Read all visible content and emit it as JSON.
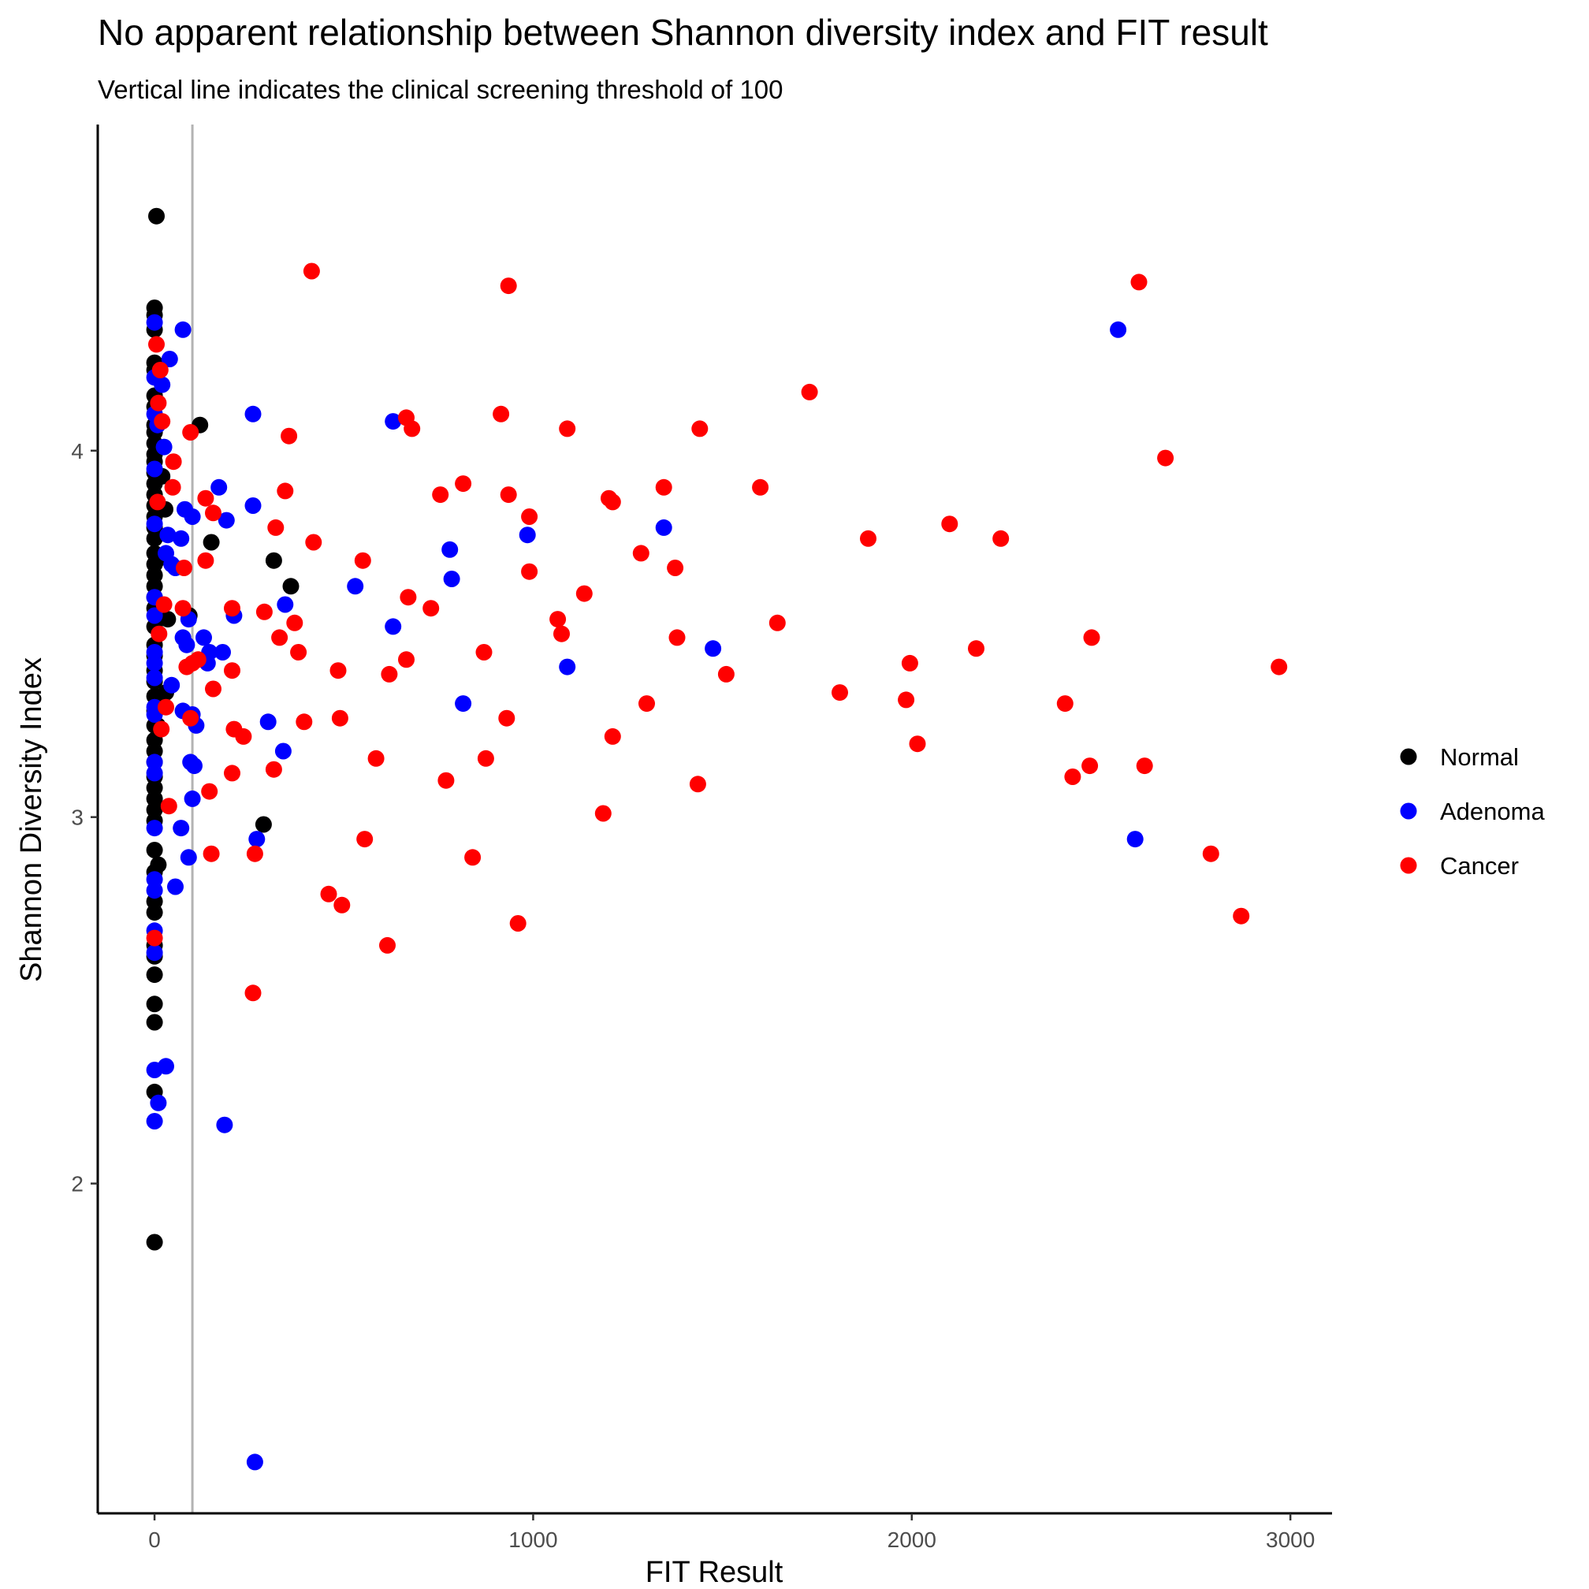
{
  "chart_data": {
    "type": "scatter",
    "title": "No apparent relationship between Shannon diversity index and FIT result",
    "subtitle": "Vertical line indicates the clinical screening threshold of 100",
    "xlabel": "FIT Result",
    "ylabel": "Shannon Diversity Index",
    "xlim": [
      -150,
      3110
    ],
    "ylim": [
      1.1,
      4.89
    ],
    "x_ticks": [
      0,
      1000,
      2000,
      3000
    ],
    "y_ticks": [
      2,
      3,
      4
    ],
    "reference_line": {
      "x": 100,
      "color": "#b3b3b3"
    },
    "grid": false,
    "legend_position": "right",
    "series": [
      {
        "name": "Normal",
        "color": "#000000",
        "points": [
          [
            5,
            4.64
          ],
          [
            0,
            4.39
          ],
          [
            0,
            4.37
          ],
          [
            0,
            4.33
          ],
          [
            0,
            4.24
          ],
          [
            0,
            4.22
          ],
          [
            0,
            4.15
          ],
          [
            0,
            4.12
          ],
          [
            0,
            4.07
          ],
          [
            0,
            4.05
          ],
          [
            0,
            4.02
          ],
          [
            0,
            3.99
          ],
          [
            0,
            3.97
          ],
          [
            0,
            3.94
          ],
          [
            0,
            3.91
          ],
          [
            0,
            3.88
          ],
          [
            0,
            3.85
          ],
          [
            0,
            3.82
          ],
          [
            0,
            3.79
          ],
          [
            0,
            3.76
          ],
          [
            0,
            3.72
          ],
          [
            0,
            3.69
          ],
          [
            0,
            3.66
          ],
          [
            0,
            3.63
          ],
          [
            0,
            3.6
          ],
          [
            0,
            3.57
          ],
          [
            0,
            3.52
          ],
          [
            0,
            3.47
          ],
          [
            0,
            3.44
          ],
          [
            0,
            3.4
          ],
          [
            0,
            3.37
          ],
          [
            0,
            3.33
          ],
          [
            0,
            3.29
          ],
          [
            0,
            3.25
          ],
          [
            0,
            3.21
          ],
          [
            0,
            3.18
          ],
          [
            0,
            3.15
          ],
          [
            0,
            3.11
          ],
          [
            0,
            3.08
          ],
          [
            0,
            3.05
          ],
          [
            0,
            3.02
          ],
          [
            0,
            2.99
          ],
          [
            0,
            2.91
          ],
          [
            0,
            2.85
          ],
          [
            0,
            2.77
          ],
          [
            0,
            2.74
          ],
          [
            0,
            2.65
          ],
          [
            0,
            2.62
          ],
          [
            0,
            2.57
          ],
          [
            0,
            2.49
          ],
          [
            0,
            2.44
          ],
          [
            0,
            2.25
          ],
          [
            0,
            1.84
          ],
          [
            5,
            3.7
          ],
          [
            8,
            3.25
          ],
          [
            10,
            2.87
          ],
          [
            15,
            3.84
          ],
          [
            20,
            3.93
          ],
          [
            28,
            3.84
          ],
          [
            35,
            3.54
          ],
          [
            30,
            3.34
          ],
          [
            120,
            4.07
          ],
          [
            150,
            3.75
          ],
          [
            92,
            3.55
          ],
          [
            315,
            3.7
          ],
          [
            360,
            3.63
          ],
          [
            288,
            2.98
          ]
        ]
      },
      {
        "name": "Adenoma",
        "color": "#0000ff",
        "points": [
          [
            0,
            4.35
          ],
          [
            0,
            4.2
          ],
          [
            0,
            4.1
          ],
          [
            0,
            3.95
          ],
          [
            0,
            3.8
          ],
          [
            0,
            3.6
          ],
          [
            0,
            3.55
          ],
          [
            0,
            3.45
          ],
          [
            0,
            3.42
          ],
          [
            0,
            3.38
          ],
          [
            0,
            3.3
          ],
          [
            0,
            3.28
          ],
          [
            0,
            3.15
          ],
          [
            0,
            3.12
          ],
          [
            0,
            2.97
          ],
          [
            0,
            2.83
          ],
          [
            0,
            2.8
          ],
          [
            0,
            2.69
          ],
          [
            0,
            2.63
          ],
          [
            0,
            2.31
          ],
          [
            0,
            2.17
          ],
          [
            10,
            2.22
          ],
          [
            30,
            2.32
          ],
          [
            8,
            4.07
          ],
          [
            20,
            4.18
          ],
          [
            25,
            4.01
          ],
          [
            40,
            4.25
          ],
          [
            75,
            4.33
          ],
          [
            35,
            3.77
          ],
          [
            45,
            3.69
          ],
          [
            55,
            3.68
          ],
          [
            30,
            3.72
          ],
          [
            70,
            3.76
          ],
          [
            80,
            3.84
          ],
          [
            100,
            3.82
          ],
          [
            170,
            3.9
          ],
          [
            190,
            3.81
          ],
          [
            260,
            4.1
          ],
          [
            260,
            3.85
          ],
          [
            75,
            3.49
          ],
          [
            85,
            3.47
          ],
          [
            90,
            3.54
          ],
          [
            130,
            3.49
          ],
          [
            145,
            3.45
          ],
          [
            180,
            3.45
          ],
          [
            210,
            3.55
          ],
          [
            140,
            3.42
          ],
          [
            100,
            3.28
          ],
          [
            110,
            3.25
          ],
          [
            45,
            3.36
          ],
          [
            75,
            3.29
          ],
          [
            95,
            3.15
          ],
          [
            105,
            3.14
          ],
          [
            100,
            3.05
          ],
          [
            70,
            2.97
          ],
          [
            55,
            2.81
          ],
          [
            90,
            2.89
          ],
          [
            185,
            2.16
          ],
          [
            300,
            3.26
          ],
          [
            345,
            3.58
          ],
          [
            340,
            3.18
          ],
          [
            270,
            2.94
          ],
          [
            265,
            1.24
          ],
          [
            530,
            3.63
          ],
          [
            630,
            4.08
          ],
          [
            630,
            3.52
          ],
          [
            780,
            3.73
          ],
          [
            785,
            3.65
          ],
          [
            815,
            3.31
          ],
          [
            985,
            3.77
          ],
          [
            1090,
            3.41
          ],
          [
            1345,
            3.79
          ],
          [
            1475,
            3.46
          ],
          [
            2545,
            4.33
          ],
          [
            2590,
            2.94
          ]
        ]
      },
      {
        "name": "Cancer",
        "color": "#ff0000",
        "points": [
          [
            5,
            4.29
          ],
          [
            15,
            4.22
          ],
          [
            10,
            4.13
          ],
          [
            20,
            4.08
          ],
          [
            8,
            3.86
          ],
          [
            25,
            3.58
          ],
          [
            12,
            3.5
          ],
          [
            18,
            3.24
          ],
          [
            0,
            2.67
          ],
          [
            30,
            3.3
          ],
          [
            38,
            3.03
          ],
          [
            50,
            3.97
          ],
          [
            48,
            3.9
          ],
          [
            78,
            3.68
          ],
          [
            75,
            3.57
          ],
          [
            85,
            3.41
          ],
          [
            100,
            3.42
          ],
          [
            115,
            3.43
          ],
          [
            95,
            3.27
          ],
          [
            145,
            3.07
          ],
          [
            150,
            2.9
          ],
          [
            95,
            4.05
          ],
          [
            135,
            3.87
          ],
          [
            155,
            3.83
          ],
          [
            135,
            3.7
          ],
          [
            155,
            3.35
          ],
          [
            205,
            3.57
          ],
          [
            205,
            3.4
          ],
          [
            210,
            3.24
          ],
          [
            205,
            3.12
          ],
          [
            235,
            3.22
          ],
          [
            265,
            2.9
          ],
          [
            260,
            2.52
          ],
          [
            290,
            3.56
          ],
          [
            320,
            3.79
          ],
          [
            330,
            3.49
          ],
          [
            345,
            3.89
          ],
          [
            355,
            4.04
          ],
          [
            370,
            3.53
          ],
          [
            380,
            3.45
          ],
          [
            395,
            3.26
          ],
          [
            315,
            3.13
          ],
          [
            415,
            4.49
          ],
          [
            420,
            3.75
          ],
          [
            485,
            3.4
          ],
          [
            490,
            3.27
          ],
          [
            460,
            2.79
          ],
          [
            495,
            2.76
          ],
          [
            550,
            3.7
          ],
          [
            585,
            3.16
          ],
          [
            555,
            2.94
          ],
          [
            620,
            3.39
          ],
          [
            615,
            2.65
          ],
          [
            665,
            3.43
          ],
          [
            670,
            3.6
          ],
          [
            665,
            4.09
          ],
          [
            680,
            4.06
          ],
          [
            730,
            3.57
          ],
          [
            755,
            3.88
          ],
          [
            770,
            3.1
          ],
          [
            815,
            3.91
          ],
          [
            840,
            2.89
          ],
          [
            870,
            3.45
          ],
          [
            875,
            3.16
          ],
          [
            915,
            4.1
          ],
          [
            930,
            3.27
          ],
          [
            935,
            3.88
          ],
          [
            935,
            4.45
          ],
          [
            960,
            2.71
          ],
          [
            990,
            3.82
          ],
          [
            990,
            3.67
          ],
          [
            1065,
            3.54
          ],
          [
            1075,
            3.5
          ],
          [
            1090,
            4.06
          ],
          [
            1135,
            3.61
          ],
          [
            1185,
            3.01
          ],
          [
            1200,
            3.87
          ],
          [
            1210,
            3.86
          ],
          [
            1210,
            3.22
          ],
          [
            1285,
            3.72
          ],
          [
            1300,
            3.31
          ],
          [
            1345,
            3.9
          ],
          [
            1375,
            3.68
          ],
          [
            1380,
            3.49
          ],
          [
            1440,
            4.06
          ],
          [
            1435,
            3.09
          ],
          [
            1510,
            3.39
          ],
          [
            1600,
            3.9
          ],
          [
            1645,
            3.53
          ],
          [
            1730,
            4.16
          ],
          [
            1810,
            3.34
          ],
          [
            1885,
            3.76
          ],
          [
            1985,
            3.32
          ],
          [
            1995,
            3.42
          ],
          [
            2015,
            3.2
          ],
          [
            2100,
            3.8
          ],
          [
            2170,
            3.46
          ],
          [
            2235,
            3.76
          ],
          [
            2405,
            3.31
          ],
          [
            2425,
            3.11
          ],
          [
            2470,
            3.14
          ],
          [
            2475,
            3.49
          ],
          [
            2600,
            4.46
          ],
          [
            2615,
            3.14
          ],
          [
            2670,
            3.98
          ],
          [
            2790,
            2.9
          ],
          [
            2870,
            2.73
          ],
          [
            2970,
            3.41
          ]
        ]
      }
    ]
  }
}
